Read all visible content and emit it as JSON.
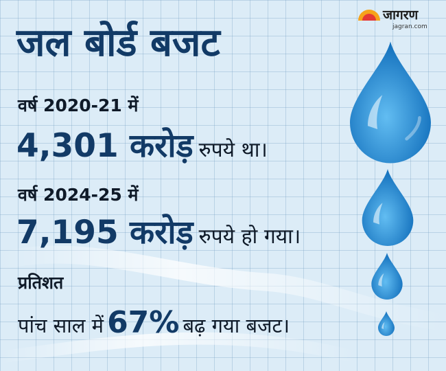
{
  "brand": {
    "name": "जागरण",
    "site": "jagran.com"
  },
  "title": "जल बोर्ड बजट",
  "sections": [
    {
      "label": "वर्ष 2020-21 में",
      "amount": "4,301 करोड़",
      "suffix": "रुपये था।"
    },
    {
      "label": "वर्ष 2024-25 में",
      "amount": "7,195 करोड़",
      "suffix": "रुपये हो गया।"
    }
  ],
  "percent_section": {
    "label": "प्रतिशत",
    "before": "पांच साल में",
    "value": "67%",
    "after": "बढ़ गया बजट।"
  },
  "colors": {
    "title": "#123a66",
    "drop": "#1e88d0",
    "background": "#dcecf7"
  },
  "icons": [
    "water-drop-icon",
    "sun-logo-icon"
  ]
}
